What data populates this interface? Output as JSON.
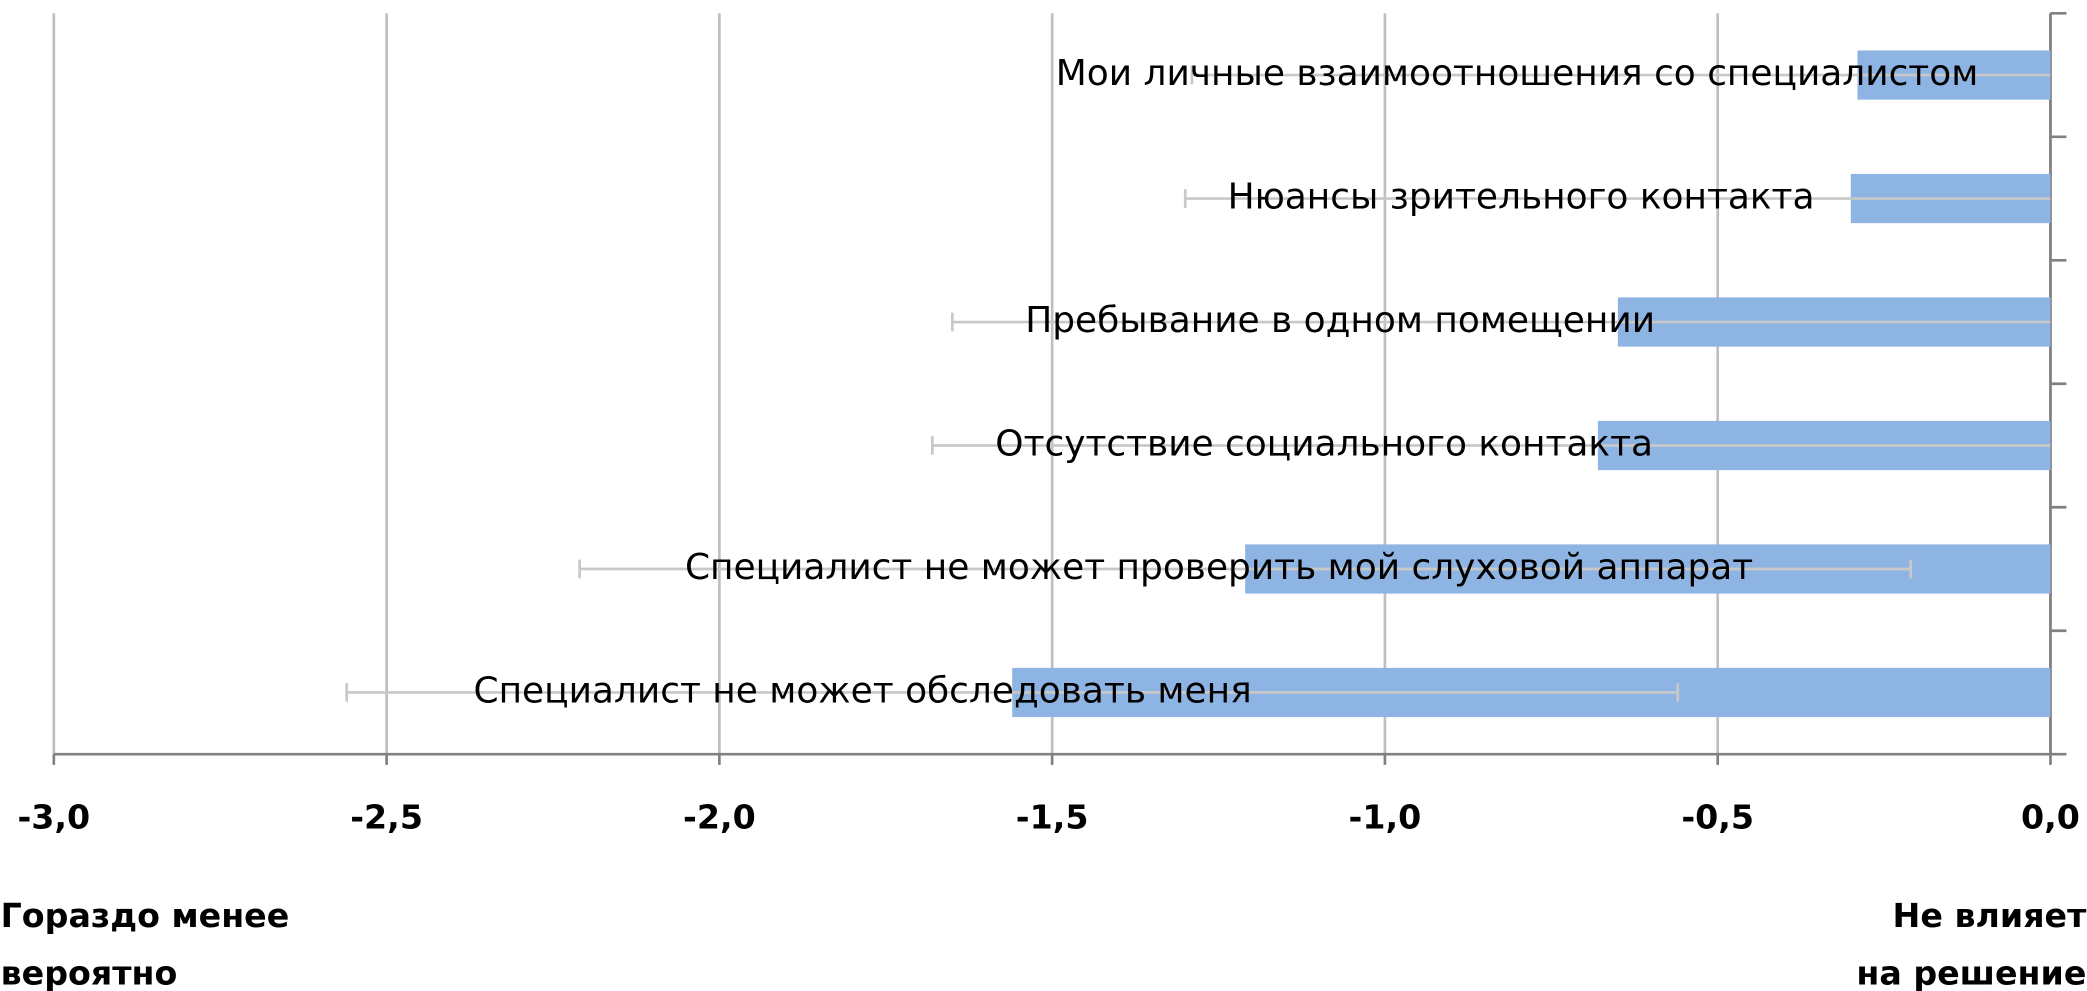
{
  "chart_data": {
    "type": "bar",
    "orientation": "horizontal",
    "categories": [
      "Мои личные взаимоотношения со специалистом",
      "Нюансы зрительного контакта",
      "Пребывание в одном помещении",
      "Отсутствие социального контакта",
      "Специалист не может проверить мой слуховой аппарат",
      "Специалист не может обследовать меня"
    ],
    "values": [
      -0.29,
      -0.3,
      -0.65,
      -0.68,
      -1.21,
      -1.56
    ],
    "errors": [
      1.0,
      1.0,
      1.0,
      1.0,
      1.0,
      1.0
    ],
    "color": "#8eb4e3",
    "xlim": [
      -3,
      0
    ],
    "xticks": [
      {
        "value": -3,
        "label": "-3,0"
      },
      {
        "value": -2.5,
        "label": "-2,5"
      },
      {
        "value": -2,
        "label": "-2,0"
      },
      {
        "value": -1.5,
        "label": "-1,5"
      },
      {
        "value": -1,
        "label": "-1,0"
      },
      {
        "value": -0.5,
        "label": "-0,5"
      },
      {
        "value": 0,
        "label": "0,0"
      }
    ],
    "grid": true,
    "x_label_left": [
      "Гораздо менее",
      "вероятно"
    ],
    "x_label_right": [
      "Не влияет",
      "на решение"
    ]
  }
}
